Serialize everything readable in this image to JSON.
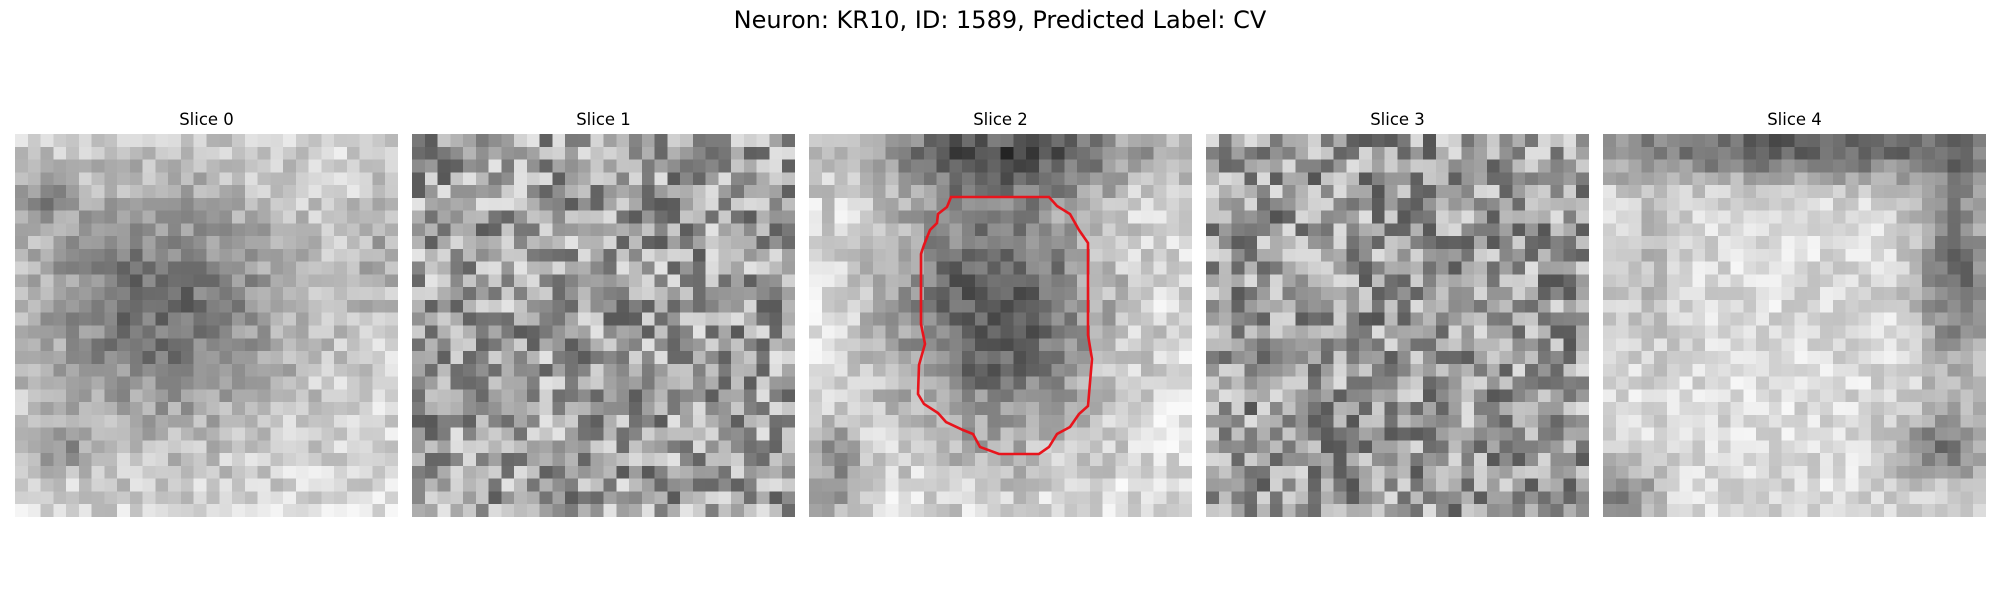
{
  "figure": {
    "title": "Neuron: KR10, ID: 1589, Predicted Label: CV"
  },
  "panels": [
    {
      "label": "Slice 0",
      "has_contour": false
    },
    {
      "label": "Slice 1",
      "has_contour": false
    },
    {
      "label": "Slice 2",
      "has_contour": true
    },
    {
      "label": "Slice 3",
      "has_contour": false
    },
    {
      "label": "Slice 4",
      "has_contour": false
    }
  ],
  "colors": {
    "contour": "#e8141c",
    "colormap": "grayscale"
  }
}
